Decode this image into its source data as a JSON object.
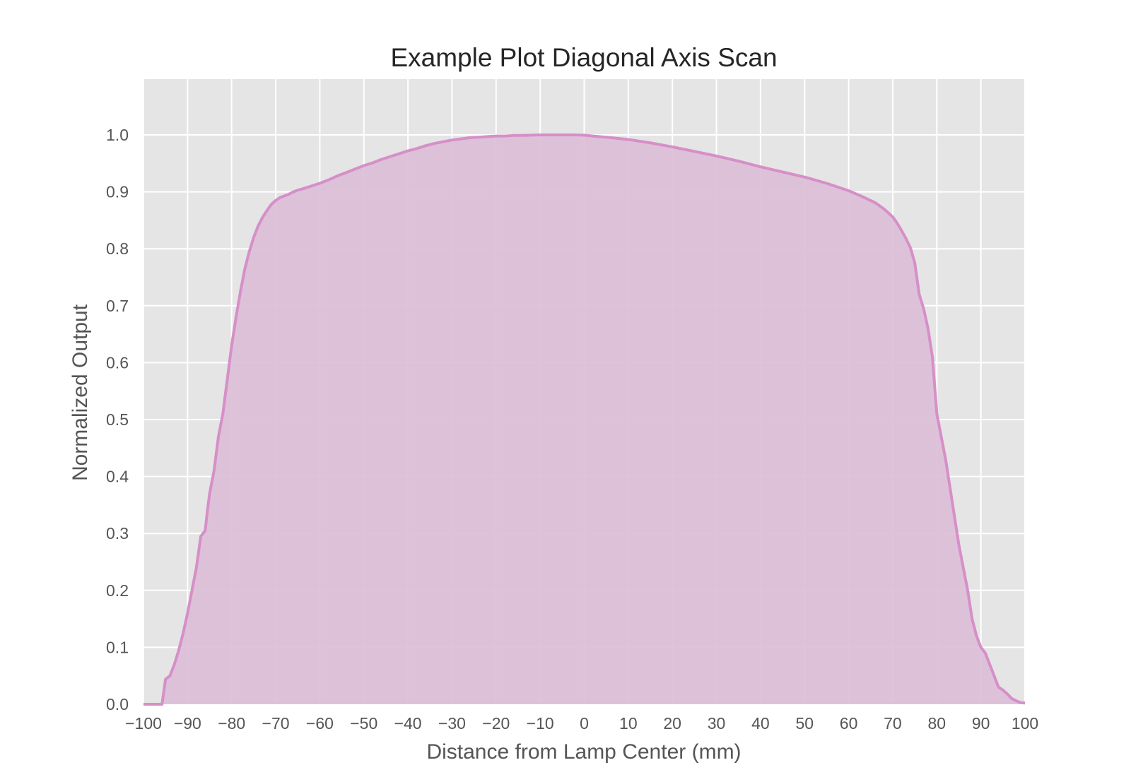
{
  "chart_data": {
    "type": "area",
    "title": "Example Plot Diagonal Axis Scan",
    "xlabel": "Distance from Lamp Center (mm)",
    "ylabel": "Normalized Output",
    "xlim": [
      -100,
      100
    ],
    "ylim": [
      0,
      1.1
    ],
    "grid": true,
    "legend": "none",
    "colors": {
      "background": "#e5e5e5",
      "grid": "#ffffff",
      "line": "#d68fc8",
      "fill": "#dcbcd6"
    },
    "x_ticks": [
      -100,
      -90,
      -80,
      -70,
      -60,
      -50,
      -40,
      -30,
      -20,
      -10,
      0,
      10,
      20,
      30,
      40,
      50,
      60,
      70,
      80,
      90,
      100
    ],
    "x_tick_labels": [
      "−100",
      "−90",
      "−80",
      "−70",
      "−60",
      "−50",
      "−40",
      "−30",
      "−20",
      "−10",
      "0",
      "10",
      "20",
      "30",
      "40",
      "50",
      "60",
      "70",
      "80",
      "90",
      "100"
    ],
    "y_ticks": [
      0.0,
      0.1,
      0.2,
      0.3,
      0.4,
      0.5,
      0.6,
      0.7,
      0.8,
      0.9,
      1.0
    ],
    "y_tick_labels": [
      "0.0",
      "0.1",
      "0.2",
      "0.3",
      "0.4",
      "0.5",
      "0.6",
      "0.7",
      "0.8",
      "0.9",
      "1.0"
    ],
    "series": [
      {
        "x": [
          -100,
          -95.8,
          -95,
          -94,
          -93,
          -92,
          -91,
          -90,
          -89,
          -88,
          -87,
          -86,
          -85.5,
          -85,
          -84,
          -83,
          -82,
          -81,
          -80,
          -79,
          -78,
          -77,
          -76,
          -75,
          -74,
          -73,
          -72,
          -71,
          -70,
          -69,
          -68,
          -67,
          -66,
          -65,
          -64,
          -62,
          -60,
          -58,
          -56,
          -54,
          -52,
          -50,
          -48,
          -46,
          -44,
          -42,
          -40,
          -38,
          -36,
          -34,
          -32,
          -30,
          -28,
          -26,
          -24,
          -22,
          -20,
          -18,
          -16,
          -14,
          -12,
          -10,
          -8,
          -6,
          -4,
          -2,
          0,
          2,
          5,
          10,
          15,
          20,
          25,
          30,
          35,
          40,
          45,
          50,
          55,
          60,
          63,
          66,
          68,
          70,
          71,
          72,
          73,
          74,
          75,
          76,
          77,
          78,
          79,
          79.5,
          80,
          81,
          82,
          83,
          84,
          85,
          86,
          87,
          88,
          89,
          89.5,
          90,
          91,
          92,
          93,
          94,
          95,
          96,
          97,
          98,
          99,
          100
        ],
        "y": [
          0.0,
          0.0,
          0.044,
          0.05,
          0.07,
          0.095,
          0.125,
          0.16,
          0.2,
          0.24,
          0.295,
          0.305,
          0.34,
          0.37,
          0.41,
          0.47,
          0.51,
          0.57,
          0.63,
          0.68,
          0.725,
          0.765,
          0.795,
          0.82,
          0.84,
          0.855,
          0.867,
          0.878,
          0.885,
          0.89,
          0.893,
          0.896,
          0.9,
          0.903,
          0.905,
          0.91,
          0.915,
          0.921,
          0.928,
          0.934,
          0.94,
          0.946,
          0.951,
          0.957,
          0.962,
          0.967,
          0.972,
          0.976,
          0.981,
          0.985,
          0.988,
          0.991,
          0.993,
          0.995,
          0.996,
          0.997,
          0.998,
          0.998,
          0.999,
          0.999,
          0.9995,
          1.0,
          1.0,
          1.0,
          1.0,
          1.0,
          0.9995,
          0.998,
          0.996,
          0.992,
          0.986,
          0.979,
          0.971,
          0.963,
          0.954,
          0.944,
          0.935,
          0.926,
          0.915,
          0.902,
          0.892,
          0.881,
          0.87,
          0.856,
          0.845,
          0.832,
          0.818,
          0.802,
          0.775,
          0.72,
          0.695,
          0.66,
          0.61,
          0.56,
          0.51,
          0.47,
          0.43,
          0.38,
          0.33,
          0.28,
          0.24,
          0.2,
          0.15,
          0.12,
          0.11,
          0.1,
          0.09,
          0.07,
          0.05,
          0.03,
          0.025,
          0.018,
          0.01,
          0.006,
          0.003,
          0.002
        ]
      }
    ]
  }
}
